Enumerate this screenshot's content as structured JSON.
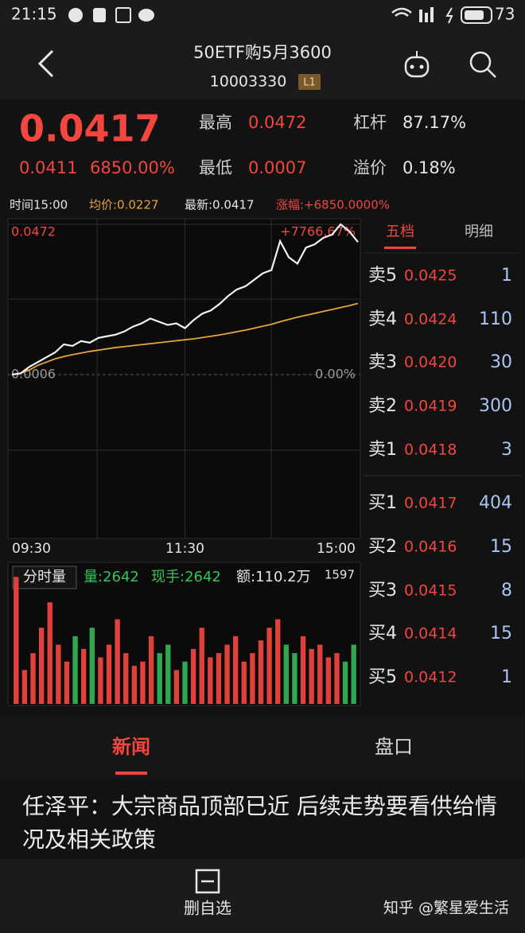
{
  "status_bar": {
    "time": "21:15",
    "battery": "73"
  },
  "header": {
    "title": "50ETF购5月3600",
    "code": "10003330",
    "badge": "L1"
  },
  "quote": {
    "price": "0.0417",
    "change": "0.0411",
    "change_pct": "6850.00%",
    "high_label": "最高",
    "high": "0.0472",
    "low_label": "最低",
    "low": "0.0007",
    "leverage_label": "杠杆",
    "leverage": "87.17%",
    "premium_label": "溢价",
    "premium": "0.18%"
  },
  "info_bar": {
    "time": "时间15:00",
    "avg": "均价:0.0227",
    "latest": "最新:0.0417",
    "rise": "涨幅:+6850.0000%"
  },
  "chart_data": [
    {
      "type": "line",
      "categories": [
        "09:30",
        null,
        null,
        null,
        null,
        null,
        null,
        null,
        null,
        null,
        null,
        null,
        null,
        null,
        null,
        null,
        null,
        null,
        null,
        null,
        "11:30",
        null,
        null,
        null,
        null,
        null,
        null,
        null,
        null,
        null,
        null,
        null,
        null,
        null,
        null,
        null,
        null,
        null,
        null,
        null,
        "15:00"
      ],
      "series": [
        {
          "color": "#f2f2f2",
          "values": [
            0.0006,
            0.001,
            0.003,
            0.0045,
            0.006,
            0.0075,
            0.01,
            0.0095,
            0.011,
            0.0105,
            0.012,
            0.0125,
            0.013,
            0.014,
            0.0155,
            0.0165,
            0.018,
            0.017,
            0.016,
            0.0165,
            0.015,
            0.0175,
            0.0195,
            0.0205,
            0.0225,
            0.025,
            0.027,
            0.028,
            0.03,
            0.032,
            0.033,
            0.042,
            0.037,
            0.035,
            0.04,
            0.041,
            0.043,
            0.044,
            0.0472,
            0.045,
            0.0417
          ]
        },
        {
          "color": "#e8a23a",
          "values": [
            0.0006,
            0.001,
            0.002,
            0.0035,
            0.0045,
            0.0055,
            0.0062,
            0.0068,
            0.0073,
            0.0078,
            0.0082,
            0.0086,
            0.009,
            0.0093,
            0.0096,
            0.0099,
            0.0102,
            0.0105,
            0.0108,
            0.0111,
            0.0114,
            0.0117,
            0.0121,
            0.0125,
            0.0129,
            0.0134,
            0.0139,
            0.0144,
            0.015,
            0.0156,
            0.0162,
            0.017,
            0.0177,
            0.0184,
            0.019,
            0.0196,
            0.0202,
            0.0208,
            0.0214,
            0.022,
            0.0227
          ]
        }
      ],
      "ylim": [
        -0.046,
        0.0472
      ],
      "yticks": [
        0.0472,
        0.0006
      ],
      "y2lim": [
        -7766.67,
        7766.67
      ],
      "y2ticks": [
        {
          "value": 7766.67,
          "label": "+7766.67%"
        },
        {
          "value": 0,
          "label": "0.00%"
        }
      ]
    },
    {
      "type": "bar",
      "title": "分时量",
      "annotations": [
        "量:2642",
        "现手:2642",
        "额:110.2万"
      ],
      "categories": [
        null,
        null,
        null,
        null,
        null,
        null,
        null,
        null,
        null,
        null,
        null,
        null,
        null,
        null,
        null,
        null,
        null,
        null,
        null,
        null,
        null,
        null,
        null,
        null,
        null,
        null,
        null,
        null,
        null,
        null,
        null,
        null,
        null,
        null,
        null,
        null,
        null,
        null,
        null,
        null,
        null
      ],
      "values": [
        1500,
        400,
        600,
        900,
        1200,
        700,
        500,
        800,
        650,
        900,
        550,
        700,
        1000,
        600,
        450,
        500,
        800,
        600,
        700,
        400,
        500,
        650,
        900,
        550,
        600,
        700,
        800,
        500,
        600,
        750,
        900,
        1000,
        700,
        600,
        800,
        650,
        700,
        550,
        600,
        500,
        700
      ],
      "up_color": "#e0413a",
      "down_color": "#2fa84f",
      "ylim": [
        0,
        1597
      ],
      "yticks": [
        1597
      ]
    }
  ],
  "order_book": {
    "tabs": [
      "五档",
      "明细"
    ],
    "asks": [
      {
        "label": "卖5",
        "price": "0.0425",
        "qty": "1"
      },
      {
        "label": "卖4",
        "price": "0.0424",
        "qty": "110"
      },
      {
        "label": "卖3",
        "price": "0.0420",
        "qty": "30"
      },
      {
        "label": "卖2",
        "price": "0.0419",
        "qty": "300"
      },
      {
        "label": "卖1",
        "price": "0.0418",
        "qty": "3"
      }
    ],
    "bids": [
      {
        "label": "买1",
        "price": "0.0417",
        "qty": "404"
      },
      {
        "label": "买2",
        "price": "0.0416",
        "qty": "15"
      },
      {
        "label": "买3",
        "price": "0.0415",
        "qty": "8"
      },
      {
        "label": "买4",
        "price": "0.0414",
        "qty": "15"
      },
      {
        "label": "买5",
        "price": "0.0412",
        "qty": "1"
      }
    ]
  },
  "news": {
    "tabs": [
      "新闻",
      "盘口"
    ],
    "headline": "任泽平：大宗商品顶部已近 后续走势要看供给情况及相关政策"
  },
  "bottom_bar": {
    "action": "删自选",
    "watermark": "知乎 @繁星爱生活"
  }
}
